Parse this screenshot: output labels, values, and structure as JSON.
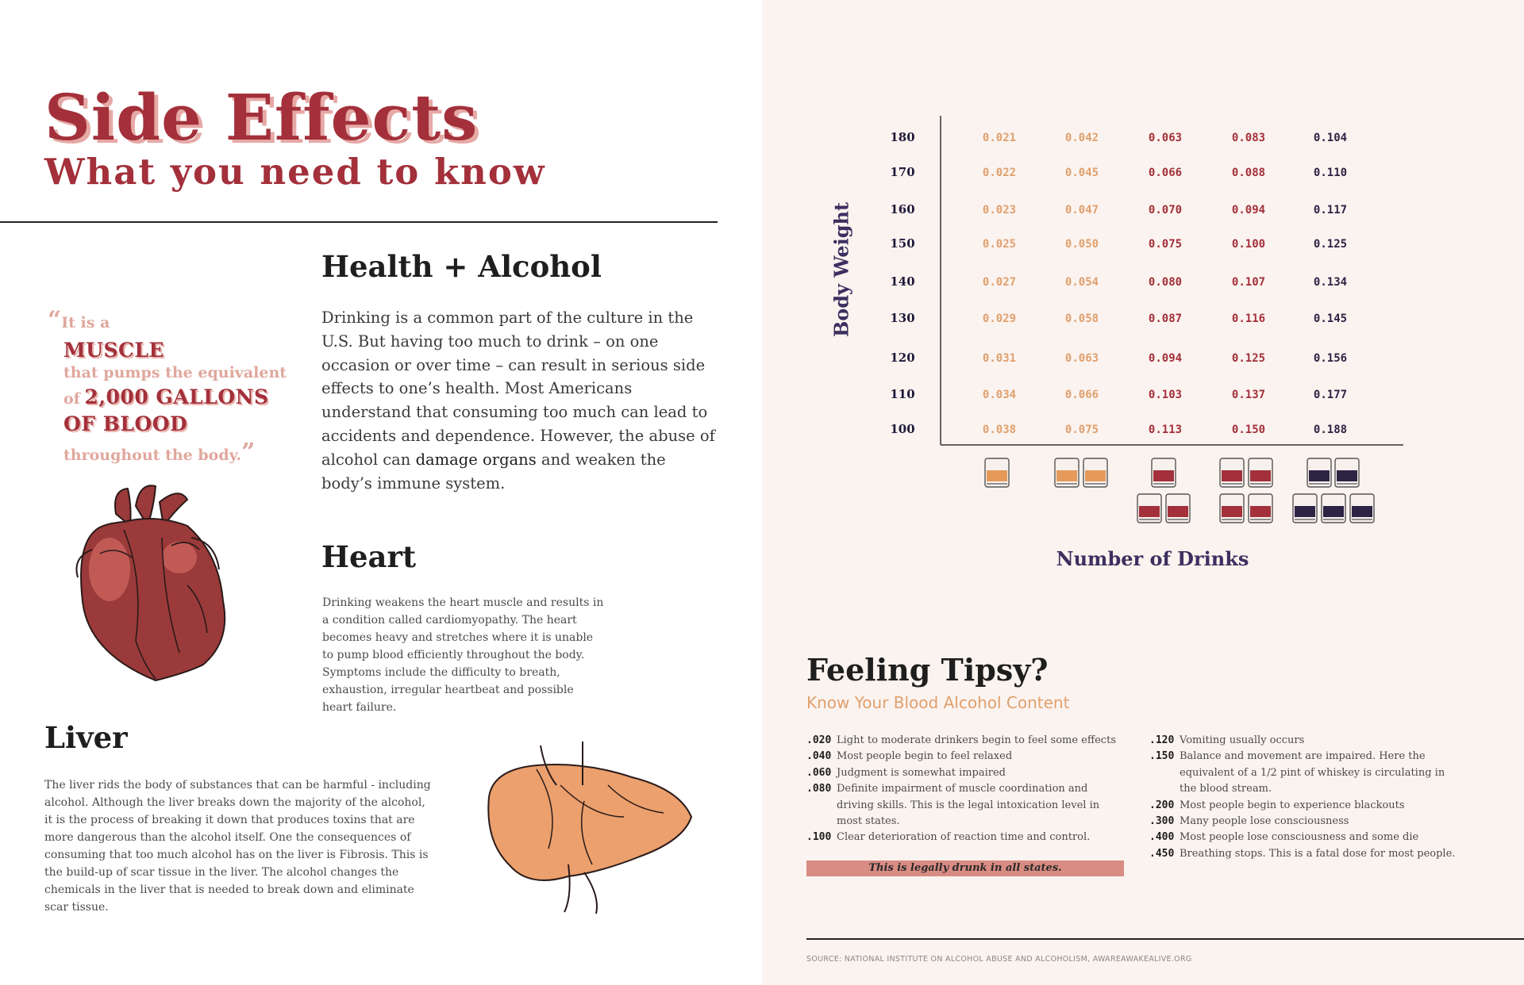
{
  "title": {
    "main": "Side Effects",
    "sub": "What you need to know"
  },
  "quote": {
    "open_mark": "“",
    "line1": "It is a",
    "line2": "MUSCLE",
    "line3": "that pumps the equivalent",
    "line4a": "of",
    "line4b": "2,000 GALLONS",
    "line5": "OF BLOOD",
    "line6": "throughout the body.",
    "close_mark": "”"
  },
  "health": {
    "heading": "Health + Alcohol",
    "body_before": "Drinking is a common part of the culture in the U.S. But having too much to drink – on one occasion or over time – can result in serious side effects to one’s health.  Most Americans understand that consuming too much can lead to accidents and dependence. However, the abuse of alcohol can ",
    "body_bold": "damage organs",
    "body_after": " and weaken the body’s immune system."
  },
  "heart": {
    "heading": "Heart",
    "body": "Drinking weakens the heart muscle and results in a condition called cardiomyopathy. The heart becomes heavy and stretches where it is unable to pump blood efficiently throughout the body. Symptoms include the difficulty to breath, exhaustion, irregular heartbeat and possible heart failure."
  },
  "liver": {
    "heading": "Liver",
    "body": "The liver rids the body of substances that can be harmful - including alcohol. Although the liver breaks down the majority of the alcohol, it is the process of breaking it down that produces toxins that are more dangerous than the alcohol itself. One the consequences of consuming that too much alcohol has on the liver is Fibrosis. This is the build-up of scar tissue in the liver. The alcohol changes the chemicals in the liver that is needed to break down and eliminate scar tissue."
  },
  "chart_data": {
    "type": "table",
    "xlabel": "Number of Drinks",
    "ylabel": "Body Weight",
    "drinks": [
      1,
      2,
      3,
      4,
      5
    ],
    "rows": [
      {
        "weight": "180",
        "values": [
          "0.021",
          "0.042",
          "0.063",
          "0.083",
          "0.104"
        ]
      },
      {
        "weight": "170",
        "values": [
          "0.022",
          "0.045",
          "0.066",
          "0.088",
          "0.110"
        ]
      },
      {
        "weight": "160",
        "values": [
          "0.023",
          "0.047",
          "0.070",
          "0.094",
          "0.117"
        ]
      },
      {
        "weight": "150",
        "values": [
          "0.025",
          "0.050",
          "0.075",
          "0.100",
          "0.125"
        ]
      },
      {
        "weight": "140",
        "values": [
          "0.027",
          "0.054",
          "0.080",
          "0.107",
          "0.134"
        ]
      },
      {
        "weight": "130",
        "values": [
          "0.029",
          "0.058",
          "0.087",
          "0.116",
          "0.145"
        ]
      },
      {
        "weight": "120",
        "values": [
          "0.031",
          "0.063",
          "0.094",
          "0.125",
          "0.156"
        ]
      },
      {
        "weight": "110",
        "values": [
          "0.034",
          "0.066",
          "0.103",
          "0.137",
          "0.177"
        ]
      },
      {
        "weight": "100",
        "values": [
          "0.038",
          "0.075",
          "0.113",
          "0.150",
          "0.188"
        ]
      }
    ],
    "column_colors": [
      "#e0a06e",
      "#e0a06e",
      "#a3303a",
      "#a3303a",
      "#2d2444"
    ],
    "glass_fill_colors": [
      "#e59a5a",
      "#e59a5a",
      "#a3303a",
      "#a3303a",
      "#2d2444"
    ]
  },
  "tipsy": {
    "heading": "Feeling Tipsy?",
    "subheading": "Know Your Blood Alcohol Content",
    "legal_banner": "This is legally drunk in all states.",
    "left": [
      {
        "code": ".020",
        "text": "Light to moderate drinkers begin to feel some effects"
      },
      {
        "code": ".040",
        "text": "Most people begin to feel relaxed"
      },
      {
        "code": ".060",
        "text": "Judgment is somewhat impaired"
      },
      {
        "code": ".080",
        "text": "Definite impairment of muscle coordination and driving skills. This is the legal intoxication level in most states."
      },
      {
        "code": ".100",
        "text": "Clear deterioration of reaction time and control."
      }
    ],
    "right": [
      {
        "code": ".120",
        "text": "Vomiting usually occurs"
      },
      {
        "code": ".150",
        "text": "Balance and movement are impaired. Here the equivalent of a 1/2 pint of whiskey is circulating in the blood stream."
      },
      {
        "code": ".200",
        "text": "Most people begin to experience blackouts"
      },
      {
        "code": ".300",
        "text": "Many people lose consciousness"
      },
      {
        "code": ".400",
        "text": "Most people lose consciousness and some die"
      },
      {
        "code": ".450",
        "text": "Breathing stops. This is a fatal dose for most people."
      }
    ]
  },
  "source": "SOURCE: NATIONAL INSTITUTE ON ALCOHOL ABUSE AND ALCOHOLISM, AWAREAWAKEALIVE.ORG",
  "colors": {
    "accent_red": "#a3303a",
    "pink": "#e0a79d",
    "orange": "#e0a06e",
    "navy": "#3b3060",
    "right_bg": "#fbf3ef"
  }
}
